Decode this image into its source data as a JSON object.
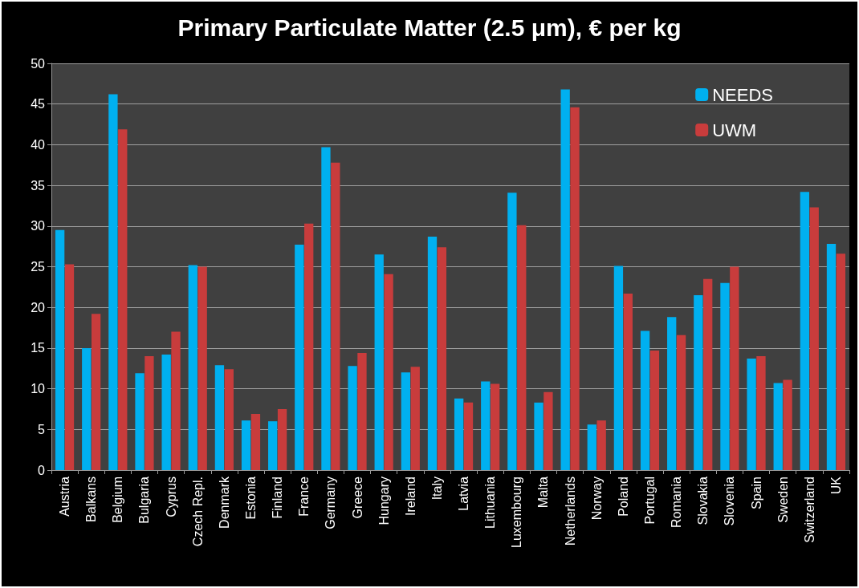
{
  "chart_data": {
    "type": "bar",
    "title": "Primary Particulate Matter (2.5 μm), € per kg",
    "categories": [
      "Austria",
      "Balkans",
      "Belgium",
      "Bulgaria",
      "Cyprus",
      "Czech Repl.",
      "Denmark",
      "Estonia",
      "Finland",
      "France",
      "Germany",
      "Greece",
      "Hungary",
      "Ireland",
      "Italy",
      "Latvia",
      "Lithuania",
      "Luxembourg",
      "Malta",
      "Netherlands",
      "Norway",
      "Poland",
      "Portugal",
      "Romania",
      "Slovakia",
      "Slovenia",
      "Spain",
      "Sweden",
      "Switzerland",
      "UK"
    ],
    "series": [
      {
        "name": "NEEDS",
        "color": "#00b0f0",
        "values": [
          29.5,
          15.0,
          46.2,
          11.9,
          14.2,
          25.2,
          12.9,
          6.1,
          6.0,
          27.7,
          39.7,
          12.8,
          26.5,
          12.0,
          28.7,
          8.8,
          10.9,
          34.1,
          8.3,
          46.8,
          5.6,
          25.1,
          17.1,
          18.8,
          21.5,
          23.0,
          13.7,
          10.7,
          34.2,
          27.8
        ]
      },
      {
        "name": "UWM",
        "color": "#c83c3c",
        "values": [
          25.3,
          19.2,
          41.9,
          14.0,
          17.0,
          25.0,
          12.4,
          6.9,
          7.5,
          30.3,
          37.8,
          14.4,
          24.1,
          12.7,
          27.4,
          8.3,
          10.6,
          30.1,
          9.6,
          44.6,
          6.1,
          21.7,
          14.7,
          16.6,
          23.5,
          25.0,
          14.0,
          11.1,
          32.3,
          26.6
        ]
      }
    ],
    "ylim": [
      0,
      50
    ],
    "yticks": [
      0,
      5,
      10,
      15,
      20,
      25,
      30,
      35,
      40,
      45,
      50
    ],
    "grid": "y",
    "legend": "top right"
  }
}
